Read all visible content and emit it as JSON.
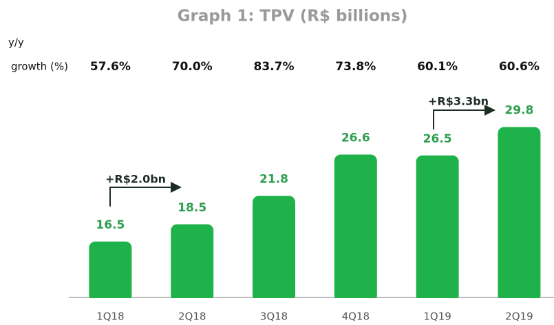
{
  "chart_data": {
    "type": "bar",
    "title": "Graph 1: TPV (R$ billions)",
    "growth_title": [
      "y/y",
      "growth (%)"
    ],
    "growth_labels": [
      "57.6%",
      "70.0%",
      "83.7%",
      "73.8%",
      "60.1%",
      "60.6%"
    ],
    "categories": [
      "1Q18",
      "2Q18",
      "3Q18",
      "4Q18",
      "1Q19",
      "2Q19"
    ],
    "values": [
      16.5,
      18.5,
      21.8,
      26.6,
      26.5,
      29.8
    ],
    "color": "#1fb24a",
    "ylim": [
      10,
      30
    ],
    "annotations": [
      "+R$2.0bn",
      "+R$3.3bn"
    ]
  }
}
